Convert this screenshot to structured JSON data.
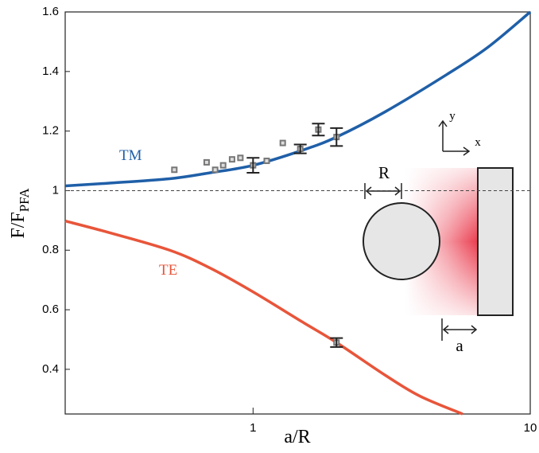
{
  "chart_data": {
    "type": "line",
    "x_label": "a/R",
    "y_label": {
      "text": "F/F",
      "sub": "PFA"
    },
    "xlim": [
      0.21,
      10
    ],
    "ylim": [
      0.25,
      1.6
    ],
    "xscale": "log",
    "xticks": [
      1,
      10
    ],
    "yticks": [
      0.4,
      0.6,
      0.8,
      1,
      1.2,
      1.4,
      1.6
    ],
    "reference_line": 1,
    "series": [
      {
        "name": "TM",
        "color": "#1f5fa8",
        "x": [
          0.21,
          0.3,
          0.5,
          0.7,
          1,
          1.5,
          2,
          3,
          5,
          7,
          10
        ],
        "values": [
          1.016,
          1.025,
          1.04,
          1.06,
          1.085,
          1.135,
          1.18,
          1.265,
          1.39,
          1.48,
          1.6
        ]
      },
      {
        "name": "TE",
        "color": "#e8553a",
        "x": [
          0.21,
          0.3,
          0.5,
          0.7,
          1,
          1.5,
          2,
          3,
          4,
          5.7
        ],
        "values": [
          0.898,
          0.86,
          0.8,
          0.74,
          0.66,
          0.56,
          0.49,
          0.38,
          0.31,
          0.25
        ]
      }
    ],
    "points": {
      "color": "#777777",
      "x": [
        0.52,
        0.68,
        0.73,
        0.78,
        0.84,
        0.9,
        1.0,
        1.12,
        1.28,
        1.48,
        1.72,
        2.0,
        2.0
      ],
      "values": [
        1.07,
        1.095,
        1.07,
        1.085,
        1.105,
        1.11,
        1.085,
        1.1,
        1.16,
        1.14,
        1.205,
        1.18,
        0.49
      ]
    },
    "error_bars": {
      "color": "#222222",
      "x": [
        1.0,
        1.48,
        1.72,
        2.0,
        2.0
      ],
      "values": [
        1.085,
        1.14,
        1.205,
        1.18,
        0.49
      ],
      "errors": [
        0.025,
        0.015,
        0.02,
        0.03,
        0.015
      ]
    },
    "annotations": [
      "R",
      "a",
      "x",
      "y"
    ]
  }
}
